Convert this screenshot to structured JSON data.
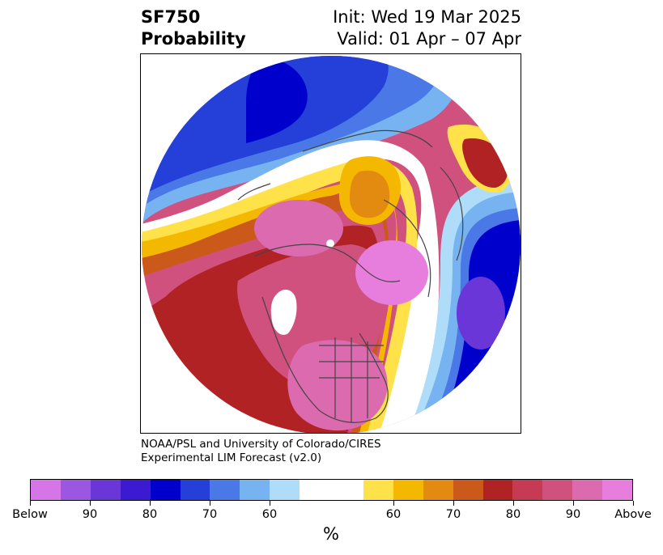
{
  "title": {
    "line1_left": "SF750",
    "line2_left": "Probability",
    "line1_right": "Init: Wed 19 Mar 2025",
    "line2_right": "Valid: 01 Apr – 07 Apr"
  },
  "credit": {
    "line1": "NOAA/PSL and University of Colorado/CIRES",
    "line2": "Experimental LIM Forecast (v2.0)"
  },
  "colorbar": {
    "colors": [
      "#d575e8",
      "#9b57e1",
      "#6a36d8",
      "#3b1ad2",
      "#0000cd",
      "#2440d8",
      "#4a78e6",
      "#76b3f0",
      "#aedcf9",
      "#ffffff",
      "#ffe24a",
      "#f5b800",
      "#e38a10",
      "#cb5a1a",
      "#b12224",
      "#c63a54",
      "#d0507e",
      "#dc6aae",
      "#e77ddc"
    ],
    "tick_labels": [
      "Below",
      "90",
      "80",
      "70",
      "60",
      "60",
      "70",
      "80",
      "90",
      "Above"
    ],
    "unit_label": "%"
  },
  "map": {
    "projection": "north-polar-stereographic",
    "field_colors": {
      "strong_below": "#0000cd",
      "below": "#2440d8",
      "weak_below": "#76b3f0",
      "neutral": "#ffffff",
      "weak_above": "#f5b800",
      "above": "#b12224",
      "strong_above": "#d0507e",
      "extreme_above": "#e77ddc"
    }
  }
}
